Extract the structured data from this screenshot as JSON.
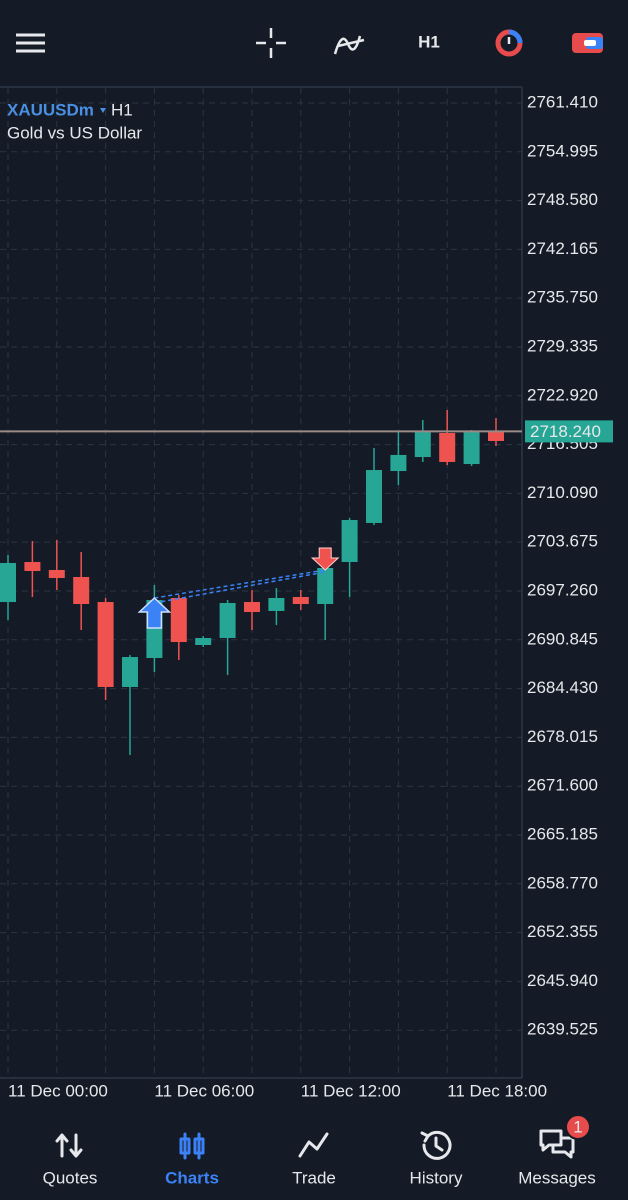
{
  "toolbar": {
    "timeframe": "H1"
  },
  "chart": {
    "type": "candlestick",
    "symbol": "XAUUSDm",
    "timeframe": "H1",
    "description": "Gold vs US Dollar",
    "categories": [
      "11 Dec 00:00",
      null,
      null,
      null,
      null,
      null,
      "11 Dec 06:00",
      null,
      null,
      null,
      null,
      null,
      "11 Dec 12:00",
      null,
      null,
      null,
      null,
      null,
      "11 Dec 18:00",
      null,
      null
    ],
    "open": [
      2695.81,
      2701.07,
      2700.02,
      2699.1,
      2695.81,
      2684.64,
      2688.45,
      2696.34,
      2690.16,
      2691.08,
      2695.81,
      2694.63,
      2696.47,
      2695.55,
      2701.07,
      2706.2,
      2713.03,
      2714.87,
      2718.03,
      2713.95,
      2718.29
    ],
    "high": [
      2701.99,
      2703.83,
      2703.96,
      2702.38,
      2696.34,
      2688.84,
      2698.05,
      2696.73,
      2691.34,
      2696.07,
      2697.39,
      2697.65,
      2697.39,
      2701.33,
      2706.85,
      2716.06,
      2718.16,
      2719.74,
      2721.05,
      2718.42,
      2720.0
    ],
    "low": [
      2693.45,
      2696.47,
      2697.39,
      2692.13,
      2682.93,
      2675.7,
      2686.61,
      2688.19,
      2689.9,
      2686.21,
      2692.13,
      2692.79,
      2694.76,
      2690.82,
      2696.47,
      2705.93,
      2711.19,
      2714.22,
      2713.82,
      2713.69,
      2716.32
    ],
    "close": [
      2700.94,
      2699.89,
      2698.97,
      2695.55,
      2684.64,
      2688.58,
      2696.07,
      2690.55,
      2691.08,
      2695.68,
      2694.5,
      2696.34,
      2695.55,
      2700.28,
      2706.59,
      2713.16,
      2715.14,
      2718.16,
      2714.22,
      2718.16,
      2716.98
    ],
    "up_color": "#27a595",
    "down_color": "#ef5350",
    "ylim": [
      2633.24,
      2763.38
    ],
    "yticks": [
      {
        "value": 2761.41,
        "label": "2761.410"
      },
      2754.995,
      {
        "value": 2748.58,
        "label": "2748.580"
      },
      2742.165,
      {
        "value": 2735.75,
        "label": "2735.750"
      },
      2729.335,
      {
        "value": 2722.92,
        "label": "2722.920"
      },
      2716.505,
      {
        "value": 2710.09,
        "label": "2710.090"
      },
      2703.675,
      {
        "value": 2697.26,
        "label": "2697.260"
      },
      2690.845,
      {
        "value": 2684.43,
        "label": "2684.430"
      },
      2678.015,
      {
        "value": 2671.6,
        "label": "2671.600"
      },
      2665.185,
      {
        "value": 2658.77,
        "label": "2658.770"
      },
      2652.355,
      {
        "value": 2645.94,
        "label": "2645.940"
      },
      2639.525
    ],
    "grid": true,
    "current_price": {
      "value": 2718.24,
      "label": "2718.240"
    },
    "trades": [
      {
        "side": "buy",
        "index": 6,
        "price": 2696.34
      },
      {
        "side": "sell",
        "index": 13,
        "price": 2700.02
      }
    ]
  },
  "nav": {
    "items": [
      {
        "label": "Quotes"
      },
      {
        "label": "Charts"
      },
      {
        "label": "Trade"
      },
      {
        "label": "History"
      },
      {
        "label": "Messages",
        "badge": 1
      }
    ],
    "active": 1
  }
}
